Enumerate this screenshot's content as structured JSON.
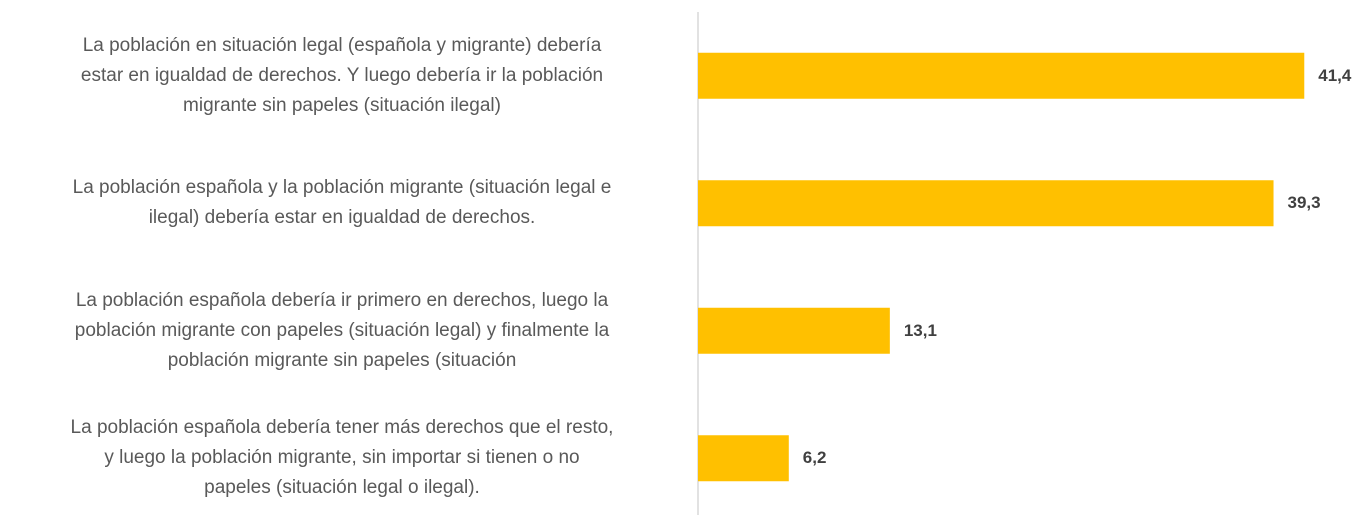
{
  "chart_data": {
    "type": "bar",
    "orientation": "horizontal",
    "categories": [
      "La población en situación legal (española y migrante) debería\nestar en igualdad de derechos. Y luego debería ir la población\nmigrante sin papeles (situación ilegal)",
      "La población española y la población migrante (situación legal e\nilegal) debería estar en igualdad de derechos.",
      "La población española debería ir primero en derechos, luego la\npoblación migrante con papeles (situación legal) y finalmente la\npoblación migrante sin papeles (situación",
      "La población española debería tener más derechos que el resto,\ny luego la población migrante, sin importar si tienen o no\npapeles (situación legal o ilegal)."
    ],
    "values": [
      41.4,
      39.3,
      13.1,
      6.2
    ],
    "value_labels": [
      "41,4",
      "39,3",
      "13,1",
      "6,2"
    ],
    "color": "#ffc000",
    "xlim": [
      0,
      45
    ]
  }
}
